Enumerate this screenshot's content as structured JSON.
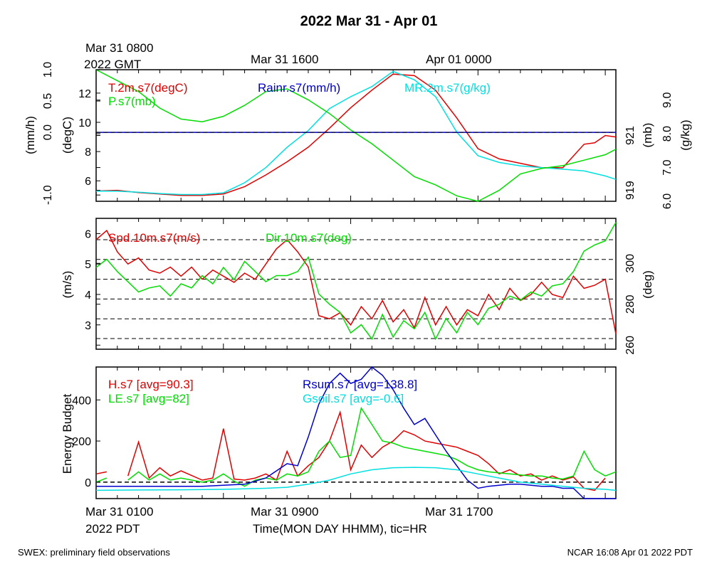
{
  "title": "2022 Mar 31 - Apr 01",
  "top_time_labels": {
    "start_line1": "Mar 31 0800",
    "start_line2": "2022 GMT",
    "mid": "Mar 31 1600",
    "end": "Apr 01 0000"
  },
  "bottom_time_labels": {
    "start_line1": "Mar 31 0100",
    "start_line2": "2022 PDT",
    "mid": "Mar 31 0900",
    "end": "Mar 31 1700"
  },
  "x_axis_label": "Time(MON DAY HHMM), tic=HR",
  "footer_left": "SWEX: preliminary field observations",
  "footer_right": "NCAR 16:08 Apr 01 2022 PDT",
  "colors": {
    "red": "#e00000",
    "green": "#00dd00",
    "blue": "#0000cc",
    "cyan": "#00e0e0",
    "black": "#000000"
  },
  "chart_data": [
    {
      "type": "line",
      "x_unit": "hours since Mar 31 0100 PDT",
      "xlim": [
        0,
        24.5
      ],
      "axes": {
        "temp": {
          "label": "(degC)",
          "ticks": [
            "6",
            "8",
            "10",
            "12"
          ],
          "ylim": [
            4.6,
            13.6
          ]
        },
        "rain": {
          "label": "(mm/h)",
          "ticks": [
            "-1.0",
            "0.0",
            "0.5",
            "1.0"
          ],
          "ylim": [
            -1.1,
            1.0
          ]
        },
        "pres": {
          "label": "(mb)",
          "ticks": [
            "919",
            "921"
          ],
          "ylim": [
            918.6,
            923.4
          ]
        },
        "mr": {
          "label": "(g/kg)",
          "ticks": [
            "6.0",
            "7.0",
            "8.0",
            "9.0"
          ],
          "ylim": [
            6.0,
            9.9
          ]
        }
      },
      "legend": [
        "T.2m.s7(degC)",
        "P.s7(mb)",
        "Rainr.s7(mm/h)",
        "MR.2m.s7(g/kg)"
      ],
      "series": [
        {
          "name": "T.2m.s7(degC)",
          "axis": "temp",
          "color": "#e00000",
          "x": [
            0,
            1,
            2,
            3,
            4,
            5,
            6,
            7,
            8,
            9,
            10,
            11,
            12,
            13,
            14,
            15,
            16,
            17,
            18,
            19,
            20,
            21,
            22,
            23,
            23.5,
            24,
            24.5
          ],
          "y": [
            5.3,
            5.35,
            5.2,
            5.1,
            5.0,
            5.0,
            5.1,
            5.6,
            6.4,
            7.3,
            8.3,
            9.6,
            11.0,
            12.2,
            13.3,
            13.2,
            12.2,
            10.3,
            8.2,
            7.5,
            7.2,
            6.9,
            6.9,
            8.5,
            8.6,
            9.1,
            9.0
          ]
        },
        {
          "name": "MR.2m.s7(g/kg)",
          "axis": "mr",
          "color": "#00e0e0",
          "x": [
            0,
            1,
            2,
            3,
            4,
            5,
            6,
            7,
            8,
            9,
            10,
            11,
            12,
            13,
            14,
            15,
            16,
            17,
            18,
            19,
            20,
            21,
            22,
            23,
            24,
            24.5
          ],
          "y": [
            6.3,
            6.3,
            6.27,
            6.23,
            6.2,
            6.2,
            6.25,
            6.55,
            7.0,
            7.6,
            8.1,
            8.75,
            9.1,
            9.4,
            9.85,
            9.6,
            9.1,
            8.05,
            7.35,
            7.15,
            7.05,
            7.0,
            6.95,
            6.9,
            6.75,
            6.65
          ]
        },
        {
          "name": "P.s7(mb)",
          "axis": "pres",
          "color": "#00dd00",
          "x": [
            0,
            1,
            2,
            3,
            4,
            5,
            6,
            7,
            8,
            9,
            10,
            11,
            12,
            13,
            14,
            15,
            16,
            17,
            18,
            19,
            20,
            21,
            22,
            23,
            24,
            24.5
          ],
          "y": [
            923.4,
            923.0,
            922.6,
            922.0,
            921.6,
            921.5,
            921.7,
            922.1,
            922.6,
            922.7,
            922.3,
            921.8,
            921.2,
            920.7,
            920.1,
            919.5,
            919.2,
            918.8,
            918.6,
            919.0,
            919.6,
            919.8,
            919.9,
            920.1,
            920.3,
            920.5
          ]
        },
        {
          "name": "Rainr.s7(mm/h)",
          "axis": "rain",
          "color": "#0000cc",
          "x": [
            0,
            24.5
          ],
          "y": [
            0,
            0
          ]
        }
      ]
    },
    {
      "type": "line",
      "x_unit": "hours since Mar 31 0100 PDT",
      "xlim": [
        0,
        24.5
      ],
      "axes": {
        "spd": {
          "label": "(m/s)",
          "ticks": [
            "3",
            "4",
            "5",
            "6"
          ],
          "ylim": [
            2.2,
            6.5
          ]
        },
        "dir": {
          "label": "(deg)",
          "ticks": [
            "260",
            "280",
            "300"
          ],
          "ylim": [
            258,
            322
          ]
        }
      },
      "legend": [
        "Spd.10m.s7(m/s)",
        "Dir.10m.s7(deg)"
      ],
      "series": [
        {
          "name": "Spd.10m.s7(m/s)",
          "axis": "spd",
          "color": "#e00000",
          "x": [
            0,
            0.5,
            1,
            1.5,
            2,
            2.5,
            3,
            3.5,
            4,
            4.5,
            5,
            5.5,
            6,
            6.5,
            7,
            7.5,
            8,
            8.5,
            9,
            9.5,
            10,
            10.5,
            11,
            11.5,
            12,
            12.5,
            13,
            13.5,
            14,
            14.5,
            15,
            15.5,
            16,
            16.5,
            17,
            17.5,
            18,
            18.5,
            19,
            19.5,
            20,
            20.5,
            21,
            21.5,
            22,
            22.5,
            23,
            23.5,
            24,
            24.5
          ],
          "y": [
            5.8,
            6.1,
            5.4,
            5.0,
            5.2,
            4.8,
            4.7,
            4.9,
            4.6,
            4.9,
            4.5,
            4.8,
            4.6,
            4.4,
            4.7,
            4.5,
            5.0,
            5.5,
            5.8,
            5.4,
            4.9,
            3.3,
            3.2,
            3.4,
            3.0,
            3.6,
            3.2,
            3.8,
            3.1,
            3.5,
            2.9,
            3.9,
            3.0,
            3.6,
            3.0,
            3.5,
            3.3,
            4.0,
            3.5,
            4.2,
            3.8,
            4.0,
            4.4,
            4.0,
            3.9,
            4.6,
            4.2,
            4.3,
            4.5,
            2.7
          ]
        },
        {
          "name": "Dir.10m.s7(deg)",
          "axis": "dir",
          "color": "#00dd00",
          "x": [
            0,
            0.5,
            1,
            1.5,
            2,
            2.5,
            3,
            3.5,
            4,
            4.5,
            5,
            5.5,
            6,
            6.5,
            7,
            7.5,
            8,
            8.5,
            9,
            9.5,
            10,
            10.5,
            11,
            11.5,
            12,
            12.5,
            13,
            13.5,
            14,
            14.5,
            15,
            15.5,
            16,
            16.5,
            17,
            17.5,
            18,
            18.5,
            19,
            19.5,
            20,
            20.5,
            21,
            21.5,
            22,
            22.5,
            23,
            23.5,
            24,
            24.5
          ],
          "y": [
            298,
            302,
            296,
            291,
            286,
            288,
            289,
            284,
            290,
            288,
            294,
            290,
            298,
            292,
            301,
            296,
            291,
            294,
            294,
            296,
            303,
            285,
            280,
            276,
            266,
            270,
            263,
            275,
            264,
            272,
            268,
            276,
            263,
            273,
            266,
            276,
            270,
            278,
            280,
            284,
            282,
            286,
            284,
            289,
            290,
            296,
            306,
            309,
            311,
            320
          ]
        }
      ]
    },
    {
      "type": "line",
      "x_unit": "hours since Mar 31 0100 PDT",
      "xlim": [
        0,
        24.5
      ],
      "ylabel": "Energy Budget",
      "yticks": [
        "0",
        "200",
        "400"
      ],
      "ylim": [
        -80,
        560
      ],
      "legend": [
        "H.s7 [avg=90.3]",
        "LE.s7 [avg=82]",
        "Rsum.s7 [avg=138.8]",
        "Gsoil.s7 [avg=-0.6]"
      ],
      "series": [
        {
          "name": "H.s7 [avg=90.3]",
          "color": "#e00000",
          "x": [
            0,
            0.5,
            1,
            1.5,
            2,
            2.5,
            3,
            3.5,
            4,
            5,
            5.5,
            6,
            6.5,
            7,
            7.5,
            8,
            8.5,
            9,
            9.5,
            10,
            10.5,
            11,
            11.5,
            12,
            12.5,
            13,
            13.5,
            14,
            14.5,
            15,
            15.5,
            16,
            16.5,
            17,
            17.5,
            18,
            18.5,
            19,
            19.5,
            20,
            20.5,
            21,
            21.5,
            22,
            22.5,
            23,
            23.5,
            24
          ],
          "y": [
            40,
            50,
            null,
            30,
            195,
            20,
            70,
            30,
            55,
            10,
            20,
            260,
            15,
            10,
            20,
            40,
            10,
            150,
            30,
            80,
            120,
            200,
            340,
            60,
            180,
            120,
            170,
            200,
            250,
            230,
            200,
            190,
            180,
            170,
            150,
            130,
            90,
            40,
            60,
            30,
            40,
            10,
            30,
            10,
            25,
            -30,
            -40,
            20
          ]
        },
        {
          "name": "LE.s7 [avg=82]",
          "color": "#00dd00",
          "x": [
            0,
            0.5,
            1,
            1.5,
            2,
            2.5,
            3,
            3.5,
            4,
            5,
            5.5,
            6,
            6.5,
            7,
            7.5,
            8,
            8.5,
            9,
            9.5,
            10,
            10.5,
            11,
            11.5,
            12,
            12.5,
            13,
            13.5,
            14,
            14.5,
            15,
            15.5,
            16,
            16.5,
            17,
            17.5,
            18,
            18.5,
            19,
            19.5,
            20,
            20.5,
            21,
            21.5,
            22,
            22.5,
            23,
            23.5,
            24,
            24.5
          ],
          "y": [
            0,
            20,
            null,
            10,
            50,
            10,
            40,
            10,
            20,
            0,
            10,
            40,
            5,
            -20,
            10,
            20,
            10,
            40,
            30,
            50,
            150,
            200,
            120,
            130,
            360,
            280,
            200,
            190,
            170,
            160,
            150,
            140,
            130,
            110,
            80,
            60,
            50,
            45,
            40,
            35,
            30,
            30,
            20,
            15,
            30,
            150,
            60,
            30,
            50
          ]
        },
        {
          "name": "Rsum.s7 [avg=138.8]",
          "color": "#0000cc",
          "x": [
            0,
            1,
            2,
            3,
            4,
            5,
            6,
            7,
            8,
            9,
            9.5,
            10,
            10.5,
            11,
            11.5,
            12,
            12.5,
            13,
            13.5,
            14,
            14.5,
            15,
            15.5,
            16,
            16.5,
            17,
            17.5,
            18,
            18.5,
            19,
            19.5,
            20,
            20.5,
            21,
            21.5,
            22,
            22.5,
            23,
            23.5,
            24,
            24.5
          ],
          "y": [
            -20,
            -20,
            -20,
            -20,
            -20,
            -20,
            -15,
            -10,
            20,
            90,
            80,
            220,
            380,
            480,
            530,
            480,
            500,
            560,
            520,
            450,
            360,
            280,
            310,
            230,
            150,
            80,
            10,
            -30,
            -20,
            -15,
            -10,
            -10,
            -15,
            -20,
            -20,
            -30,
            -30,
            -80,
            -80,
            -80,
            -80
          ]
        },
        {
          "name": "Gsoil.s7 [avg=-0.6]",
          "color": "#00e0e0",
          "x": [
            0,
            2,
            4,
            6,
            8,
            9,
            10,
            11,
            12,
            13,
            14,
            15,
            16,
            17,
            18,
            19,
            20,
            21,
            22,
            23,
            24,
            24.5
          ],
          "y": [
            -40,
            -38,
            -37,
            -35,
            -30,
            -25,
            -10,
            10,
            40,
            60,
            70,
            72,
            70,
            60,
            40,
            20,
            0,
            -10,
            -20,
            -30,
            -35,
            -40
          ]
        }
      ]
    }
  ]
}
